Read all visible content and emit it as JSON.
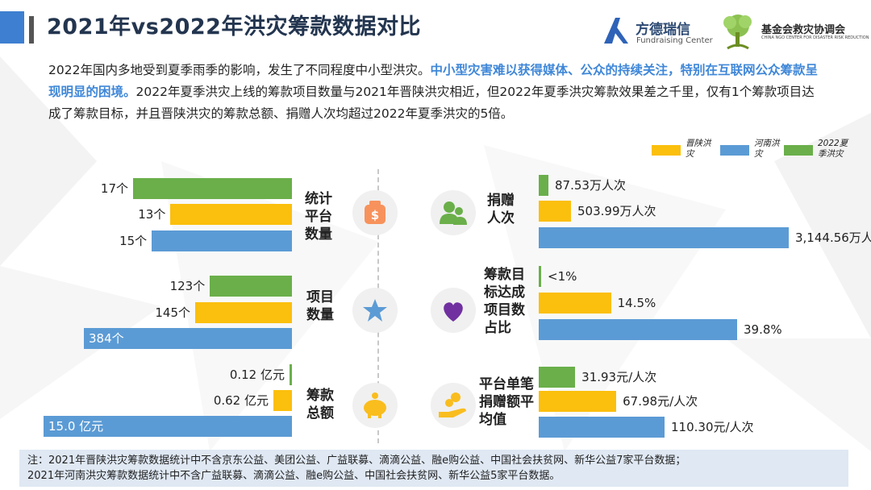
{
  "title": "2021年vs2022年洪灾筹款数据对比",
  "logos": {
    "left_cn": "方德瑞信",
    "left_en": "Fundraising Center",
    "right_cn": "基金会救灾协调会",
    "right_en": "CHINA NGO CENTER FOR DISASTER RISK REDUCTION"
  },
  "intro": {
    "part1": "2022年国内多地受到夏季雨季的影响，发生了不同程度中小型洪灾。",
    "highlight": "中小型灾害难以获得媒体、公众的持续关注，特别在互联网公众筹款呈现明显的困境。",
    "part2": "2022年夏季洪灾上线的筹款项目数量与2021年晋陕洪灾相近，但2022年夏季洪灾筹款效果差之千里，仅有1个筹款项目达成了筹款目标，并且晋陕洪灾的筹款总额、捐赠人次均超过2022年夏季洪灾的5倍。"
  },
  "legend": [
    {
      "label": "晋陕洪灾",
      "color": "#fbbf0d"
    },
    {
      "label": "河南洪灾",
      "color": "#5b9bd5"
    },
    {
      "label": "2022夏季洪灾",
      "color": "#6aaf4a"
    }
  ],
  "colors": {
    "summer2022": "#6aaf4a",
    "jinshan": "#fbbf0d",
    "henan": "#5b9bd5"
  },
  "chart_data": [
    {
      "type": "bar",
      "orientation": "horizontal",
      "category": "统计平台数量",
      "series": [
        {
          "name": "2022夏季洪灾",
          "value": 17,
          "label": "17个"
        },
        {
          "name": "晋陕洪灾",
          "value": 13,
          "label": "13个"
        },
        {
          "name": "河南洪灾",
          "value": 15,
          "label": "15个"
        }
      ]
    },
    {
      "type": "bar",
      "orientation": "horizontal",
      "category": "项目数量",
      "series": [
        {
          "name": "2022夏季洪灾",
          "value": 123,
          "label": "123个"
        },
        {
          "name": "晋陕洪灾",
          "value": 145,
          "label": "145个"
        },
        {
          "name": "河南洪灾",
          "value": 384,
          "label": "384个"
        }
      ]
    },
    {
      "type": "bar",
      "orientation": "horizontal",
      "category": "筹款总额",
      "series": [
        {
          "name": "2022夏季洪灾",
          "value": 0.12,
          "label": "0.12 亿元"
        },
        {
          "name": "晋陕洪灾",
          "value": 0.62,
          "label": "0.62 亿元"
        },
        {
          "name": "河南洪灾",
          "value": 15.0,
          "label": "15.0 亿元"
        }
      ]
    },
    {
      "type": "bar",
      "orientation": "horizontal",
      "category": "捐赠人次",
      "series": [
        {
          "name": "2022夏季洪灾",
          "value": 87.53,
          "label": "87.53万人次"
        },
        {
          "name": "晋陕洪灾",
          "value": 503.99,
          "label": "503.99万人次"
        },
        {
          "name": "河南洪灾",
          "value": 3144.56,
          "label": "3,144.56万人次"
        }
      ]
    },
    {
      "type": "bar",
      "orientation": "horizontal",
      "category": "筹款目标达成项目数占比",
      "series": [
        {
          "name": "2022夏季洪灾",
          "value": 0.8,
          "label": "<1%"
        },
        {
          "name": "晋陕洪灾",
          "value": 14.5,
          "label": "14.5%"
        },
        {
          "name": "河南洪灾",
          "value": 39.8,
          "label": "39.8%"
        }
      ]
    },
    {
      "type": "bar",
      "orientation": "horizontal",
      "category": "平台单笔捐赠额平均值",
      "series": [
        {
          "name": "2022夏季洪灾",
          "value": 31.93,
          "label": "31.93元/人次"
        },
        {
          "name": "晋陕洪灾",
          "value": 67.98,
          "label": "67.98元/人次"
        },
        {
          "name": "河南洪灾",
          "value": 110.3,
          "label": "110.30元/人次"
        }
      ]
    }
  ],
  "categories": {
    "platforms": [
      "统计",
      "平台",
      "数量"
    ],
    "projects": [
      "项目",
      "数量"
    ],
    "amount": [
      "筹款",
      "总额"
    ],
    "donors": [
      "捐赠",
      "人次"
    ],
    "goal": [
      "筹款目",
      "标达成",
      "项目数",
      "占比"
    ],
    "avg": [
      "平台单笔",
      "捐赠额平",
      "均值"
    ]
  },
  "icons": [
    "money-bag-icon",
    "star-icon",
    "piggy-bank-icon",
    "people-icon",
    "heart-icon",
    "coin-hand-icon"
  ],
  "note": {
    "line1": "注：2021年晋陕洪灾筹款数据统计中不含京东公益、美团公益、广益联募、滴滴公益、融e购公益、中国社会扶贫网、新华公益7家平台数据；",
    "line2": "2021年河南洪灾筹款数据统计中不含广益联募、滴滴公益、融e购公益、中国社会扶贫网、新华公益5家平台数据。"
  }
}
